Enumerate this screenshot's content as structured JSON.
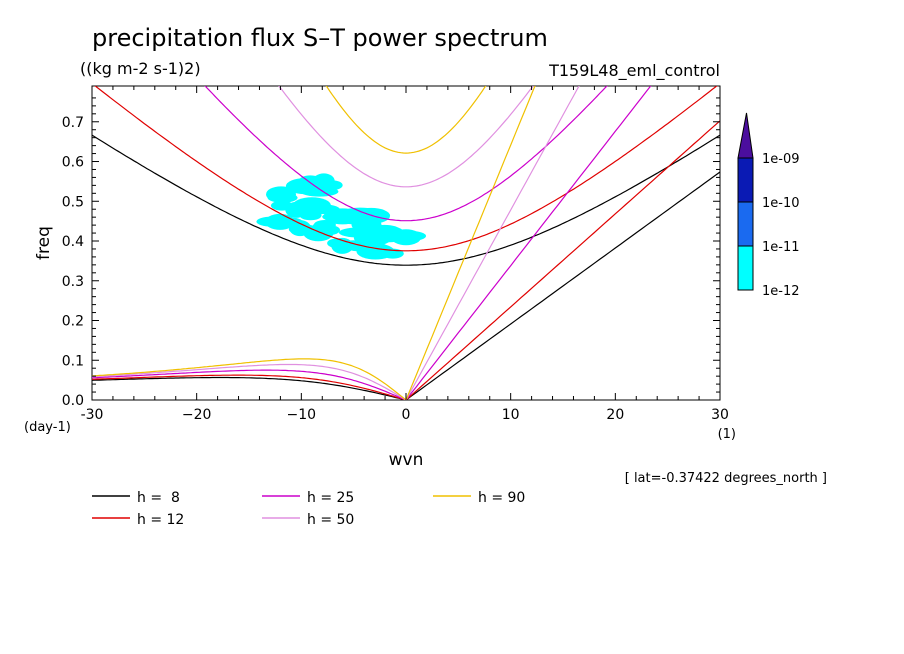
{
  "chart_data": {
    "type": "heatmap",
    "title": "precipitation flux S–T power spectrum",
    "units": "((kg m-2 s-1)2)",
    "run": "T159L48_eml_control",
    "xlabel": "wvn",
    "ylabel": "freq",
    "x_unit": "(1)",
    "y_unit": "(day-1)",
    "xlim": [
      -30,
      30
    ],
    "ylim": [
      0,
      0.79
    ],
    "x_ticks": [
      -30,
      -20,
      -10,
      0,
      10,
      20,
      30
    ],
    "x_tick_labels": [
      "-30",
      "−20",
      "−10",
      "0",
      "10",
      "20",
      "30"
    ],
    "y_ticks": [
      0,
      0.1,
      0.2,
      0.3,
      0.4,
      0.5,
      0.6,
      0.7
    ],
    "y_tick_labels": [
      "0.0",
      "0.1",
      "0.2",
      "0.3",
      "0.4",
      "0.5",
      "0.6",
      "0.7"
    ],
    "lat_note": "[ lat=-0.37422 degrees_north ]",
    "colorbar": {
      "labels": [
        "1e-09",
        "1e-10",
        "1e-11",
        "1e-12"
      ],
      "colors": [
        "#4b0e9e",
        "#0a1ab4",
        "#1a6af0",
        "#00ffff"
      ]
    },
    "dispersion_curves": [
      {
        "label": "h =  8",
        "h": 8,
        "color": "#000000"
      },
      {
        "label": "h = 12",
        "h": 12,
        "color": "#e00000"
      },
      {
        "label": "h = 25",
        "h": 25,
        "color": "#cc00cc"
      },
      {
        "label": "h = 50",
        "h": 50,
        "color": "#e090e0"
      },
      {
        "label": "h = 90",
        "h": 90,
        "color": "#f0c000"
      }
    ],
    "heatmap_patches": [
      {
        "k": -9.5,
        "f": 0.53,
        "level": "1e-12"
      },
      {
        "k": -10.5,
        "f": 0.47,
        "level": "1e-12"
      },
      {
        "k": -8.5,
        "f": 0.44,
        "level": "1e-12"
      },
      {
        "k": -5.5,
        "f": 0.45,
        "level": "1e-12"
      },
      {
        "k": -4.0,
        "f": 0.41,
        "level": "1e-12"
      },
      {
        "k": -2.0,
        "f": 0.39,
        "level": "1e-12"
      }
    ]
  }
}
